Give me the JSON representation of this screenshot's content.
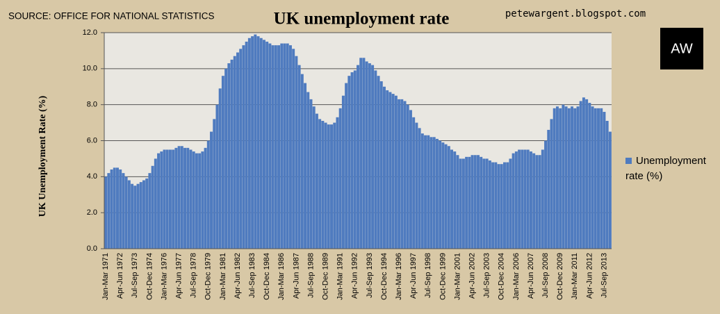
{
  "chart_data": {
    "type": "bar",
    "source": "SOURCE: OFFICE FOR NATIONAL STATISTICS",
    "title": "UK unemployment rate",
    "site": "petewargent.blogspot.com",
    "logo": "AW",
    "y_label": "UK Unemployment Rate (%)",
    "series": [
      {
        "name": "Unemployment rate (%)",
        "color": "#4f7bbf",
        "values": [
          4.0,
          4.2,
          4.4,
          4.5,
          4.5,
          4.4,
          4.2,
          4.0,
          3.8,
          3.6,
          3.5,
          3.6,
          3.7,
          3.8,
          3.9,
          4.2,
          4.6,
          5.0,
          5.3,
          5.4,
          5.5,
          5.5,
          5.5,
          5.5,
          5.6,
          5.7,
          5.7,
          5.6,
          5.6,
          5.5,
          5.4,
          5.3,
          5.3,
          5.4,
          5.6,
          6.0,
          6.5,
          7.2,
          8.0,
          8.9,
          9.6,
          10.0,
          10.3,
          10.5,
          10.7,
          10.9,
          11.1,
          11.3,
          11.5,
          11.7,
          11.8,
          11.9,
          11.8,
          11.7,
          11.6,
          11.5,
          11.4,
          11.3,
          11.3,
          11.3,
          11.4,
          11.4,
          11.4,
          11.3,
          11.1,
          10.7,
          10.2,
          9.7,
          9.2,
          8.7,
          8.3,
          7.9,
          7.5,
          7.2,
          7.1,
          7.0,
          6.9,
          6.9,
          7.0,
          7.3,
          7.8,
          8.5,
          9.2,
          9.6,
          9.8,
          9.9,
          10.2,
          10.6,
          10.6,
          10.4,
          10.3,
          10.2,
          9.9,
          9.6,
          9.3,
          9.0,
          8.8,
          8.7,
          8.6,
          8.5,
          8.3,
          8.3,
          8.2,
          8.0,
          7.7,
          7.3,
          7.0,
          6.7,
          6.4,
          6.3,
          6.3,
          6.2,
          6.2,
          6.1,
          6.0,
          5.9,
          5.8,
          5.7,
          5.5,
          5.4,
          5.2,
          5.0,
          5.0,
          5.1,
          5.1,
          5.2,
          5.2,
          5.2,
          5.1,
          5.0,
          5.0,
          4.9,
          4.8,
          4.8,
          4.7,
          4.7,
          4.8,
          4.8,
          5.0,
          5.3,
          5.4,
          5.5,
          5.5,
          5.5,
          5.5,
          5.4,
          5.3,
          5.2,
          5.2,
          5.5,
          6.0,
          6.6,
          7.2,
          7.8,
          7.9,
          7.8,
          8.0,
          7.9,
          7.8,
          7.9,
          7.8,
          7.9,
          8.2,
          8.4,
          8.3,
          8.1,
          7.9,
          7.8,
          7.8,
          7.8,
          7.6,
          7.1,
          6.5
        ]
      }
    ],
    "categories": [
      "Jan-Mar 1971",
      null,
      null,
      null,
      null,
      "Apr-Jun 1972",
      null,
      null,
      null,
      null,
      "Jul-Sep 1973",
      null,
      null,
      null,
      null,
      "Oct-Dec 1974",
      null,
      null,
      null,
      null,
      "Jan-Mar 1976",
      null,
      null,
      null,
      null,
      "Apr-Jun 1977",
      null,
      null,
      null,
      null,
      "Jul-Sep 1978",
      null,
      null,
      null,
      null,
      "Oct-Dec 1979",
      null,
      null,
      null,
      null,
      "Jan-Mar 1981",
      null,
      null,
      null,
      null,
      "Apr-Jun 1982",
      null,
      null,
      null,
      null,
      "Jul-Sep 1983",
      null,
      null,
      null,
      null,
      "Oct-Dec 1984",
      null,
      null,
      null,
      null,
      "Jan-Mar 1986",
      null,
      null,
      null,
      null,
      "Apr-Jun 1987",
      null,
      null,
      null,
      null,
      "Jul-Sep 1988",
      null,
      null,
      null,
      null,
      "Oct-Dec 1989",
      null,
      null,
      null,
      null,
      "Jan-Mar 1991",
      null,
      null,
      null,
      null,
      "Apr-Jun 1992",
      null,
      null,
      null,
      null,
      "Jul-Sep 1993",
      null,
      null,
      null,
      null,
      "Oct-Dec 1994",
      null,
      null,
      null,
      null,
      "Jan-Mar 1996",
      null,
      null,
      null,
      null,
      "Apr-Jun 1997",
      null,
      null,
      null,
      null,
      "Jul-Sep 1998",
      null,
      null,
      null,
      null,
      "Oct-Dec 1999",
      null,
      null,
      null,
      null,
      "Jan-Mar 2001",
      null,
      null,
      null,
      null,
      "Apr-Jun 2002",
      null,
      null,
      null,
      null,
      "Jul-Sep 2003",
      null,
      null,
      null,
      null,
      "Oct-Dec 2004",
      null,
      null,
      null,
      null,
      "Jan-Mar 2006",
      null,
      null,
      null,
      null,
      "Apr-Jun 2007",
      null,
      null,
      null,
      null,
      "Jul-Sep 2008",
      null,
      null,
      null,
      null,
      "Oct-Dec 2009",
      null,
      null,
      null,
      null,
      "Jan-Mar 2011",
      null,
      null,
      null,
      null,
      "Apr-Jun 2012",
      null,
      null,
      null,
      null,
      "Jul-Sep 2013",
      null,
      null
    ],
    "ylim": [
      0,
      12
    ],
    "yticks": [
      {
        "value": 0,
        "label": "0.0"
      },
      {
        "value": 2,
        "label": "2.0"
      },
      {
        "value": 4,
        "label": "4.0"
      },
      {
        "value": 6,
        "label": "6.0"
      },
      {
        "value": 8,
        "label": "8.0"
      },
      {
        "value": 10,
        "label": "10.0"
      },
      {
        "value": 12,
        "label": "12.0"
      }
    ],
    "grid": true,
    "legend": "right"
  }
}
